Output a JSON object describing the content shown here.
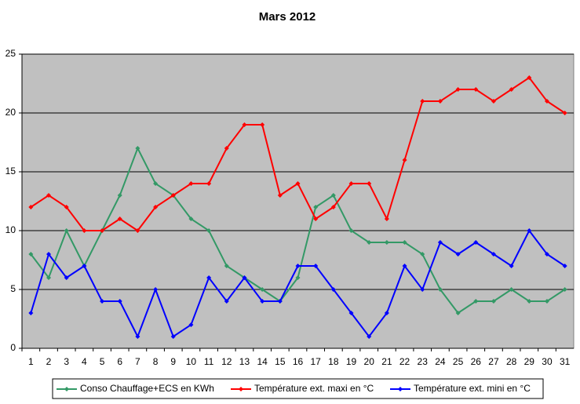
{
  "chart_data": {
    "type": "line",
    "title": "Mars 2012",
    "categories": [
      1,
      2,
      3,
      4,
      5,
      6,
      7,
      8,
      9,
      10,
      11,
      12,
      13,
      14,
      15,
      16,
      17,
      18,
      19,
      20,
      21,
      22,
      23,
      24,
      25,
      26,
      27,
      28,
      29,
      30,
      31
    ],
    "series": [
      {
        "name": "Conso Chauffage+ECS en KWh",
        "color": "#339966",
        "values": [
          8,
          6,
          10,
          7,
          10,
          13,
          17,
          14,
          13,
          11,
          10,
          7,
          6,
          5,
          4,
          6,
          12,
          13,
          10,
          9,
          9,
          9,
          8,
          5,
          3,
          4,
          4,
          5,
          4,
          4,
          5
        ]
      },
      {
        "name": "Température ext. maxi en °C",
        "color": "#ff0000",
        "values": [
          12,
          13,
          12,
          10,
          10,
          11,
          10,
          12,
          13,
          14,
          14,
          17,
          19,
          19,
          13,
          14,
          11,
          12,
          14,
          14,
          11,
          16,
          21,
          21,
          22,
          22,
          21,
          22,
          23,
          21,
          20
        ]
      },
      {
        "name": "Température ext. mini en °C",
        "color": "#0000ff",
        "values": [
          3,
          8,
          6,
          7,
          4,
          4,
          1,
          5,
          1,
          2,
          6,
          4,
          6,
          4,
          4,
          7,
          7,
          5,
          3,
          1,
          3,
          7,
          5,
          9,
          8,
          9,
          8,
          7,
          10,
          8,
          7
        ]
      }
    ],
    "ylim": [
      0,
      25
    ],
    "yticks": [
      0,
      5,
      10,
      15,
      20,
      25
    ],
    "grid": true,
    "legend": "bottom"
  }
}
